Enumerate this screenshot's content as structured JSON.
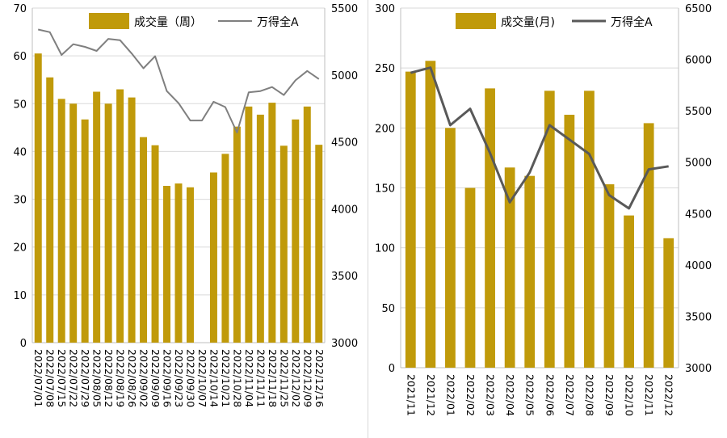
{
  "chart_data": [
    {
      "type": "bar",
      "bar_color": "#C09A0A",
      "line_color": "#7F7F7F",
      "categories": [
        "2022/07/01",
        "2022/07/08",
        "2022/07/15",
        "2022/07/22",
        "2022/07/29",
        "2022/08/05",
        "2022/08/12",
        "2022/08/19",
        "2022/08/26",
        "2022/09/02",
        "2022/09/09",
        "2022/09/16",
        "2022/09/23",
        "2022/09/30",
        "2022/10/07",
        "2022/10/14",
        "2022/10/21",
        "2022/10/28",
        "2022/11/04",
        "2022/11/11",
        "2022/11/18",
        "2022/11/25",
        "2022/12/02",
        "2022/12/09",
        "2022/12/16"
      ],
      "series": [
        {
          "name": "成交量（周）",
          "axis": "left",
          "kind": "bar",
          "values": [
            60.5,
            55.5,
            51,
            50,
            46.7,
            52.5,
            50,
            53,
            51.3,
            43,
            41.3,
            32.8,
            33.3,
            32.5,
            null,
            35.6,
            39.5,
            45.2,
            49.4,
            47.7,
            50.2,
            41.2,
            46.7,
            49.4,
            41.4
          ]
        },
        {
          "name": "万得全A",
          "axis": "right",
          "kind": "line",
          "values": [
            5340,
            5320,
            5150,
            5230,
            5210,
            5180,
            5270,
            5260,
            5160,
            5050,
            5140,
            4880,
            4790,
            4660,
            4660,
            4800,
            4760,
            4570,
            4870,
            4880,
            4910,
            4850,
            4960,
            5030,
            4970
          ]
        }
      ],
      "ylim_left": [
        0,
        70
      ],
      "yticks_left": [
        "0",
        "10",
        "20",
        "30",
        "40",
        "50",
        "60",
        "70"
      ],
      "ylim_right": [
        3000,
        5500
      ],
      "yticks_right": [
        "3000",
        "3500",
        "4000",
        "4500",
        "5000",
        "5500"
      ],
      "legend": [
        "成交量（周）",
        "万得全A"
      ],
      "legend_position": "top",
      "grid": true
    },
    {
      "type": "bar",
      "bar_color": "#C09A0A",
      "line_color": "#595959",
      "categories": [
        "2021/11",
        "2021/12",
        "2022/01",
        "2022/02",
        "2022/03",
        "2022/04",
        "2022/05",
        "2022/06",
        "2022/07",
        "2022/08",
        "2022/09",
        "2022/10",
        "2022/11",
        "2022/12"
      ],
      "series": [
        {
          "name": "成交量(月)",
          "axis": "left",
          "kind": "bar",
          "values": [
            247,
            256,
            200,
            150,
            233,
            167,
            160,
            231,
            211,
            231,
            153,
            127,
            204,
            108
          ]
        },
        {
          "name": "万得全A",
          "axis": "right",
          "kind": "line",
          "values": [
            5870,
            5920,
            5360,
            5520,
            5090,
            4610,
            4900,
            5360,
            5220,
            5080,
            4680,
            4550,
            4930,
            4960
          ]
        }
      ],
      "ylim_left": [
        0,
        300
      ],
      "yticks_left": [
        "0",
        "50",
        "100",
        "150",
        "200",
        "250",
        "300"
      ],
      "ylim_right": [
        3000,
        6500
      ],
      "yticks_right": [
        "3000",
        "3500",
        "4000",
        "4500",
        "5000",
        "5500",
        "6000",
        "6500"
      ],
      "legend": [
        "成交量(月)",
        "万得全A"
      ],
      "legend_position": "top",
      "grid": true
    }
  ]
}
